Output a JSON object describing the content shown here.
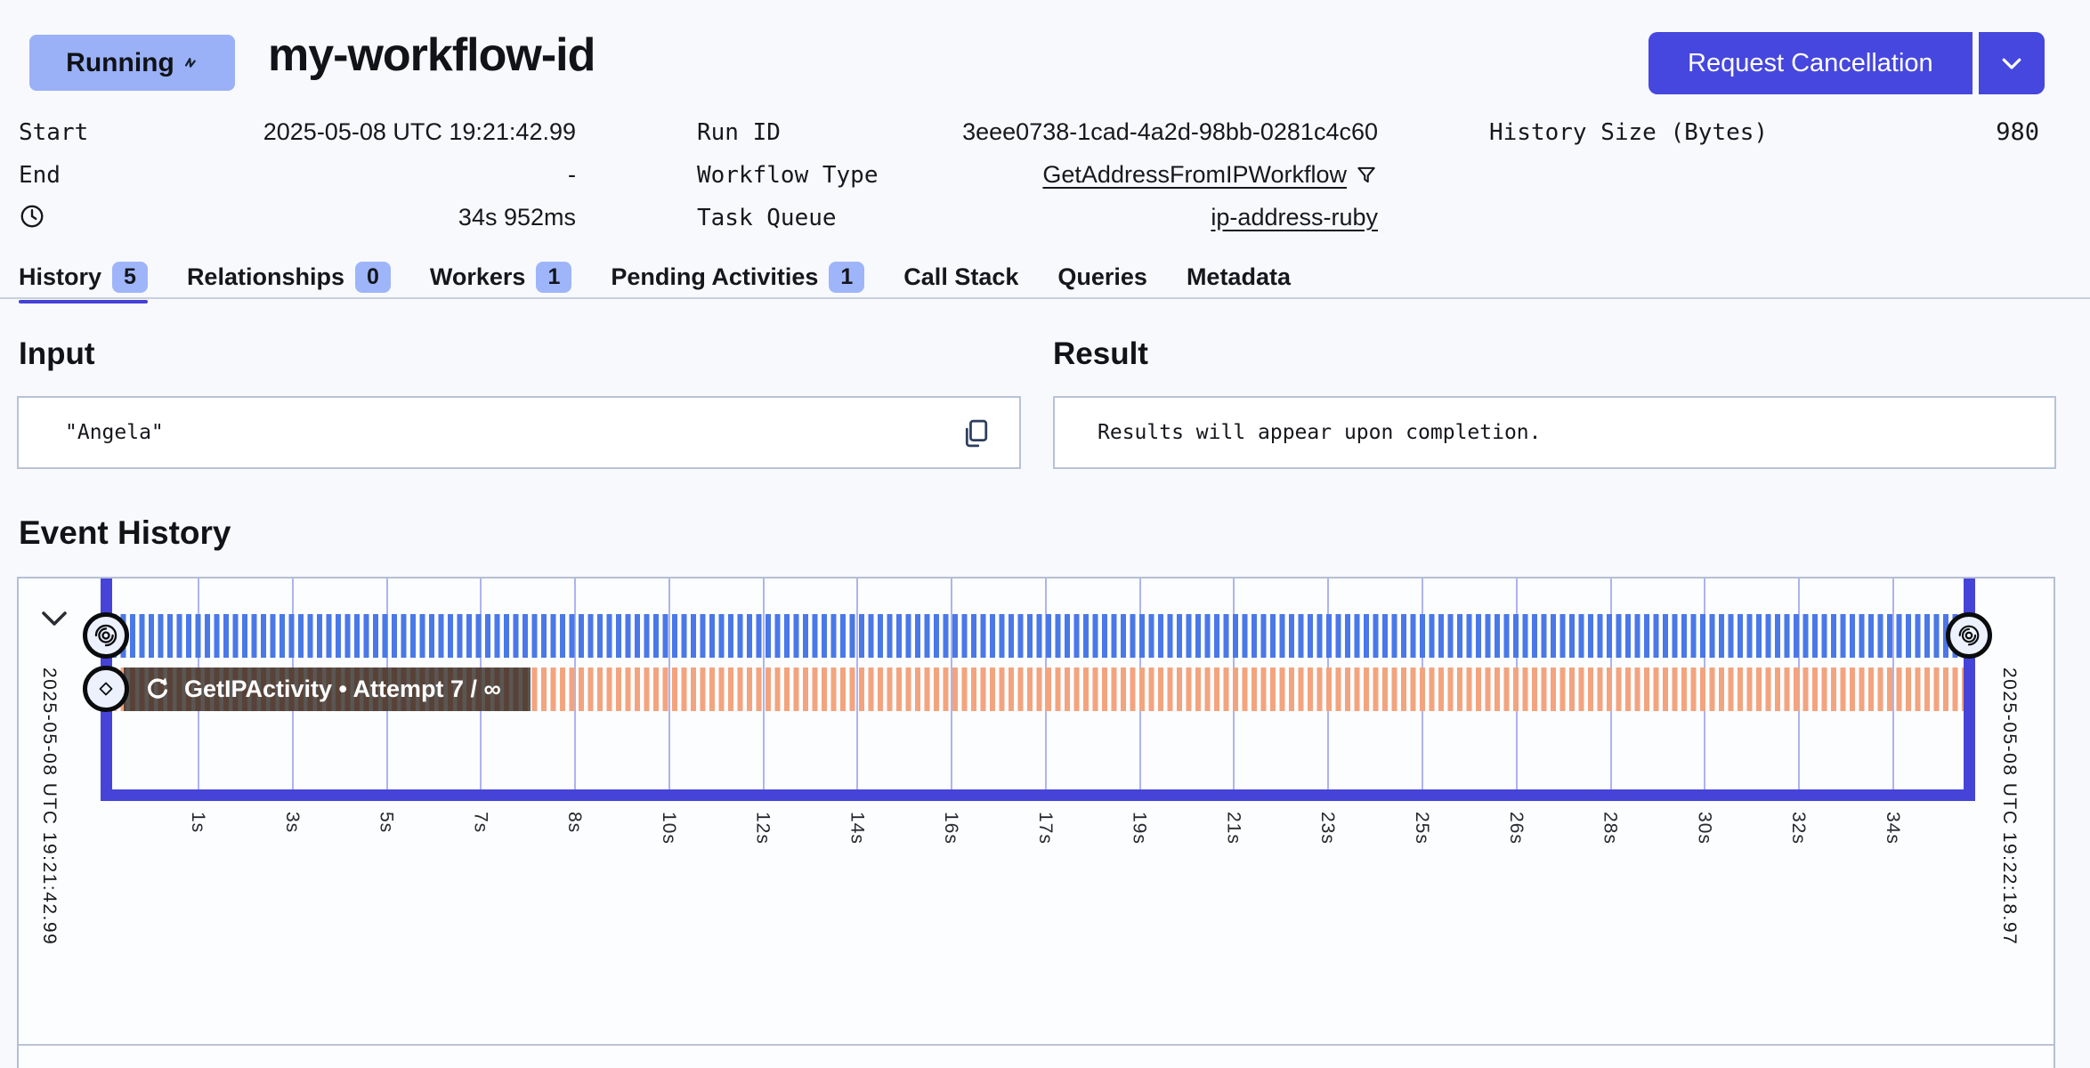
{
  "header": {
    "status": "Running",
    "workflow_id": "my-workflow-id",
    "cancel_button_label": "Request Cancellation"
  },
  "details": {
    "start_label": "Start",
    "start_value": "2025-05-08 UTC 19:21:42.99",
    "end_label": "End",
    "end_value": "-",
    "duration_value": "34s 952ms",
    "run_id_label": "Run ID",
    "run_id_value": "3eee0738-1cad-4a2d-98bb-0281c4c60",
    "workflow_type_label": "Workflow Type",
    "workflow_type_value": "GetAddressFromIPWorkflow",
    "task_queue_label": "Task Queue",
    "task_queue_value": "ip-address-ruby",
    "history_size_label": "History Size (Bytes)",
    "history_size_value": "980"
  },
  "tabs": [
    {
      "label": "History",
      "count": "5",
      "active": true
    },
    {
      "label": "Relationships",
      "count": "0",
      "active": false
    },
    {
      "label": "Workers",
      "count": "1",
      "active": false
    },
    {
      "label": "Pending Activities",
      "count": "1",
      "active": false
    },
    {
      "label": "Call Stack",
      "active": false
    },
    {
      "label": "Queries",
      "active": false
    },
    {
      "label": "Metadata",
      "active": false
    }
  ],
  "input": {
    "heading": "Input",
    "value": "\"Angela\""
  },
  "result": {
    "heading": "Result",
    "value": "Results will appear upon completion."
  },
  "event_history": {
    "heading": "Event History",
    "start_time": "2025-05-08 UTC 19:21:42.99",
    "end_time": "2025-05-08 UTC 19:22:18.97",
    "activity_label": "GetIPActivity • Attempt 7 / ∞",
    "ticks": [
      "1s",
      "3s",
      "5s",
      "7s",
      "8s",
      "10s",
      "12s",
      "14s",
      "16s",
      "17s",
      "19s",
      "21s",
      "23s",
      "25s",
      "26s",
      "28s",
      "30s",
      "32s",
      "34s"
    ],
    "timeline_rows": [
      {
        "type": "workflow-execution",
        "start": "2025-05-08 UTC 19:21:42.99",
        "end": "2025-05-08 UTC 19:22:18.97",
        "color": "#4a78e8",
        "style": "striped"
      },
      {
        "type": "activity",
        "name": "GetIPActivity",
        "attempt": "7 / ∞",
        "color": "#f3a47e",
        "style": "striped"
      }
    ]
  },
  "colors": {
    "accent_indigo": "#4547de",
    "axis_indigo": "#4643d8",
    "status_badge_bg": "#9ab1f8",
    "tab_badge_bg": "#9fb5f9",
    "workflow_stripe": "#4a78e8",
    "activity_stripe": "#f3a47e",
    "overlay_dark": "rgba(44,39,35,0.78)",
    "page_bg": "#f8f9fc"
  },
  "icons": {
    "status-spinner-icon": "small zigzag spinner glyph",
    "chevron-down-icon": "∨",
    "clock-icon": "🕐 outline clock",
    "filter-icon": "funnel outline",
    "copy-icon": "two stacked pages",
    "collapse-chevron-icon": "∨",
    "workflow-spiral-icon": "concentric spiral (temporal logo)",
    "activity-diamond-icon": "◇",
    "retry-icon": "↻ circular arrow"
  }
}
